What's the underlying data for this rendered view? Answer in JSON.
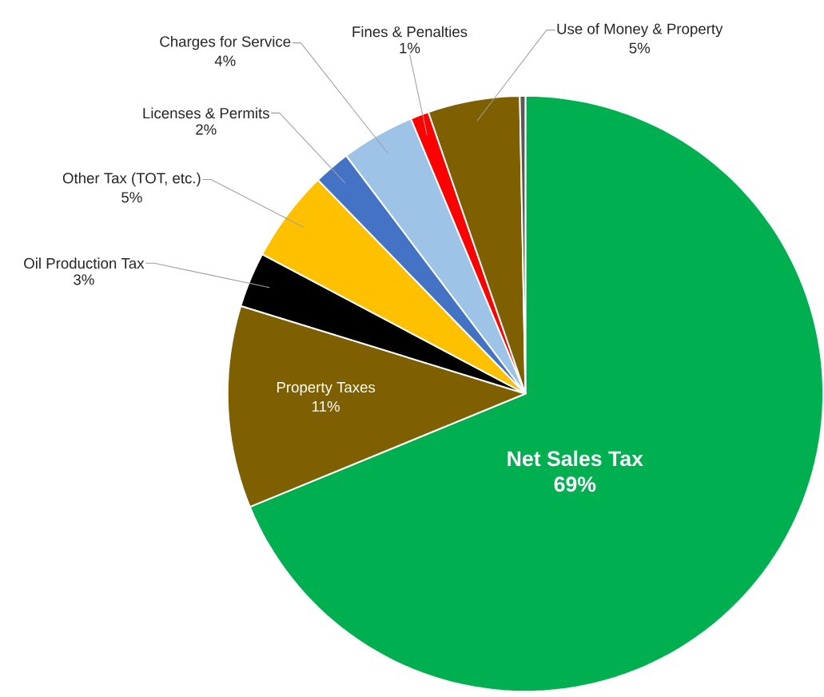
{
  "chart_data": {
    "type": "pie",
    "categories": [
      "Net Sales Tax",
      "Property Taxes",
      "Oil Production Tax",
      "Other Tax (TOT, etc.)",
      "Licenses & Permits",
      "Charges for Service",
      "Fines & Penalties",
      "Use of Money & Property",
      null
    ],
    "values": [
      69,
      11,
      3,
      5,
      2,
      4,
      1,
      5,
      0.3
    ],
    "value_labels": [
      "69%",
      "11%",
      "3%",
      "5%",
      "2%",
      "4%",
      "1%",
      "5%",
      null
    ],
    "colors": [
      "#00b050",
      "#7f6000",
      "#000000",
      "#ffc000",
      "#4472c4",
      "#9dc3e6",
      "#ff0000",
      "#7f6000",
      "#595959"
    ]
  }
}
